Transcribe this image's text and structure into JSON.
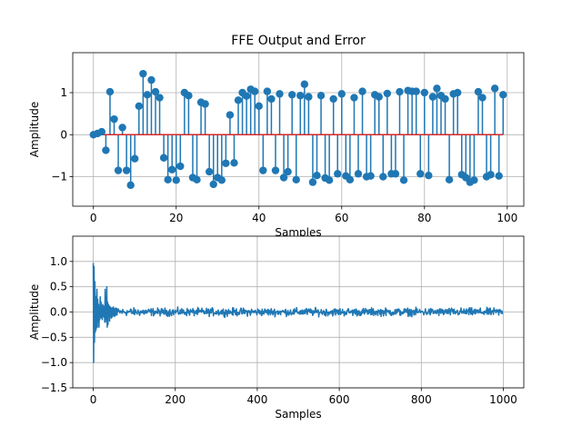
{
  "figure": {
    "title": "FFE Output and Error"
  },
  "chart_data": [
    {
      "type": "stem",
      "title": "FFE Output and Error",
      "xlabel": "Samples",
      "ylabel": "Amplitude",
      "xlim": [
        -5,
        104
      ],
      "ylim": [
        -1.7,
        1.95
      ],
      "xticks": [
        0,
        20,
        40,
        60,
        80,
        100
      ],
      "yticks": [
        -1,
        0,
        1
      ],
      "grid": true,
      "colors": {
        "stem": "#1f77b4",
        "marker": "#1f77b4",
        "baseline": "#d62728"
      },
      "x": [
        0,
        1,
        2,
        3,
        4,
        5,
        6,
        7,
        8,
        9,
        10,
        11,
        12,
        13,
        14,
        15,
        16,
        17,
        18,
        19,
        20,
        21,
        22,
        23,
        24,
        25,
        26,
        27,
        28,
        29,
        30,
        31,
        32,
        33,
        34,
        35,
        36,
        37,
        38,
        39,
        40,
        41,
        42,
        43,
        44,
        45,
        46,
        47,
        48,
        49,
        50,
        51,
        52,
        53,
        54,
        55,
        56,
        57,
        58,
        59,
        60,
        61,
        62,
        63,
        64,
        65,
        66,
        67,
        68,
        69,
        70,
        71,
        72,
        73,
        74,
        75,
        76,
        77,
        78,
        79,
        80,
        81,
        82,
        83,
        84,
        85,
        86,
        87,
        88,
        89,
        90,
        91,
        92,
        93,
        94,
        95,
        96,
        97,
        98,
        99
      ],
      "values": [
        0.0,
        0.03,
        0.07,
        -0.37,
        1.02,
        0.37,
        -0.85,
        0.17,
        -0.85,
        -1.2,
        -0.57,
        0.68,
        1.45,
        0.95,
        1.3,
        1.02,
        0.88,
        -0.55,
        -1.07,
        -0.83,
        -1.08,
        -0.75,
        1.0,
        0.93,
        -1.02,
        -1.07,
        0.77,
        0.73,
        -0.88,
        -1.18,
        -1.02,
        -1.08,
        -0.68,
        0.47,
        -0.67,
        0.82,
        1.0,
        0.92,
        1.08,
        1.03,
        0.68,
        -0.85,
        1.03,
        0.85,
        -0.85,
        0.97,
        -1.02,
        -0.88,
        0.95,
        -1.07,
        0.93,
        1.2,
        0.9,
        -1.13,
        -0.97,
        0.93,
        -1.03,
        -1.08,
        0.85,
        -0.93,
        0.97,
        -0.98,
        -1.07,
        0.88,
        -0.93,
        1.03,
        -1.0,
        -0.98,
        0.95,
        0.9,
        -1.0,
        0.98,
        -0.93,
        -0.93,
        1.02,
        -1.08,
        1.05,
        1.03,
        1.03,
        -0.93,
        1.0,
        -0.97,
        0.9,
        1.1,
        0.93,
        0.85,
        -1.07,
        0.97,
        1.0,
        -0.95,
        -1.02,
        -1.13,
        -1.08,
        1.02,
        0.88,
        -1.0,
        -0.95,
        1.1,
        -0.98,
        0.95
      ]
    },
    {
      "type": "line",
      "xlabel": "Samples",
      "ylabel": "Amplitude",
      "xlim": [
        -50,
        1050
      ],
      "ylim": [
        -1.5,
        1.5
      ],
      "xticks": [
        0,
        200,
        400,
        600,
        800,
        1000
      ],
      "yticks": [
        -1.5,
        -1.0,
        -0.5,
        0.0,
        0.5,
        1.0
      ],
      "grid": true,
      "colors": {
        "line": "#1f77b4"
      },
      "n_samples": 1000,
      "early_transient": {
        "x": [
          0,
          1,
          2,
          3,
          4,
          5,
          6,
          7,
          8,
          9,
          10,
          11,
          12,
          13,
          14,
          15,
          16,
          17,
          18,
          19,
          20,
          21,
          22,
          23,
          24,
          25,
          26,
          27,
          28,
          29,
          30,
          31,
          32,
          33,
          34,
          35,
          36,
          37,
          38,
          39,
          40,
          41,
          42,
          43,
          44,
          45,
          46,
          47,
          48,
          49,
          50,
          51,
          52,
          53,
          54,
          55,
          56,
          57,
          58,
          59
        ],
        "y": [
          0.97,
          -1.0,
          0.9,
          -0.6,
          0.6,
          -0.4,
          0.3,
          -0.35,
          0.2,
          0.45,
          -0.3,
          0.25,
          -0.2,
          0.15,
          -0.3,
          0.1,
          -0.15,
          0.3,
          -0.1,
          0.2,
          -0.12,
          0.1,
          -0.15,
          0.15,
          -0.08,
          0.12,
          -0.1,
          0.08,
          -0.2,
          0.45,
          -0.2,
          0.3,
          -0.15,
          0.5,
          -0.3,
          0.2,
          -0.25,
          0.15,
          -0.1,
          0.12,
          -0.18,
          0.1,
          -0.08,
          0.09,
          -0.12,
          0.07,
          -0.1,
          0.08,
          -0.06,
          0.1,
          -0.08,
          0.07,
          -0.09,
          0.06,
          -0.07,
          0.08,
          -0.05,
          0.07,
          -0.06,
          0.05
        ]
      },
      "steady_state_amplitude": 0.08,
      "description_series": "Equalizer error signal, decaying from about ±1.0 to about ±0.08 noise after ~60 samples"
    }
  ]
}
